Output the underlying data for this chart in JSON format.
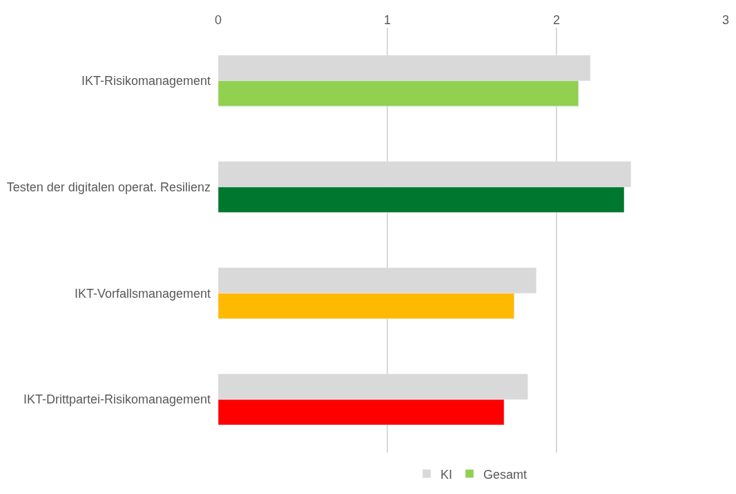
{
  "chart_data": {
    "type": "bar",
    "orientation": "horizontal",
    "categories": [
      "IKT-Risikomanagement",
      "Testen der digitalen operat. Resilienz",
      "IKT-Vorfallsmanagement",
      "IKT-Drittpartei-Risikomanagement"
    ],
    "series": [
      {
        "name": "KI",
        "color": "#d9d9d9",
        "values": [
          2.2,
          2.44,
          1.88,
          1.83
        ]
      },
      {
        "name": "Gesamt",
        "colors": [
          "#92d050",
          "#00772f",
          "#ffb900",
          "#ff0000"
        ],
        "values": [
          2.13,
          2.4,
          1.75,
          1.69
        ]
      }
    ],
    "xlim": [
      0,
      3
    ],
    "xticks": [
      0,
      1,
      2,
      3
    ],
    "grid": "x",
    "legend": "bottom"
  }
}
